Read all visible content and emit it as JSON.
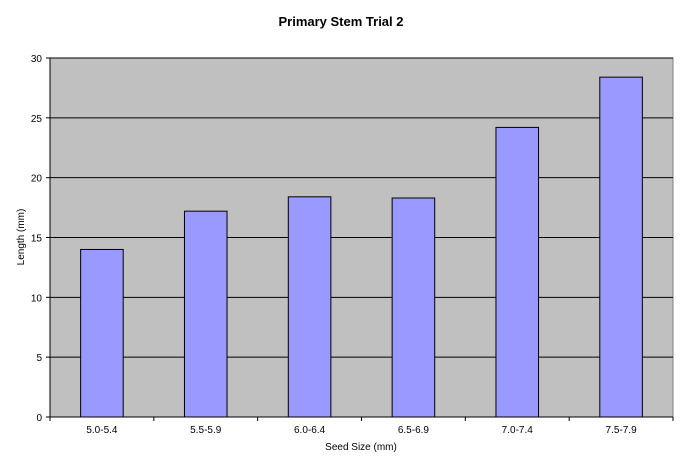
{
  "chart_data": {
    "type": "bar",
    "title": "Primary Stem Trial 2",
    "xlabel": "Seed Size (mm)",
    "ylabel": "Length (mm)",
    "categories": [
      "5.0-5.4",
      "5.5-5.9",
      "6.0-6.4",
      "6.5-6.9",
      "7.0-7.4",
      "7.5-7.9"
    ],
    "values": [
      14.0,
      17.2,
      18.4,
      18.3,
      24.2,
      28.4
    ],
    "ylim": [
      0,
      30
    ],
    "yticks": [
      "0",
      "5",
      "10",
      "15",
      "20",
      "25",
      "30"
    ],
    "grid": "horizontal",
    "legend": "none"
  },
  "colors": {
    "plot_background": "#c0c0c0",
    "bar_fill": "#9999ff",
    "bar_stroke": "#000000",
    "gridline": "#000000"
  }
}
